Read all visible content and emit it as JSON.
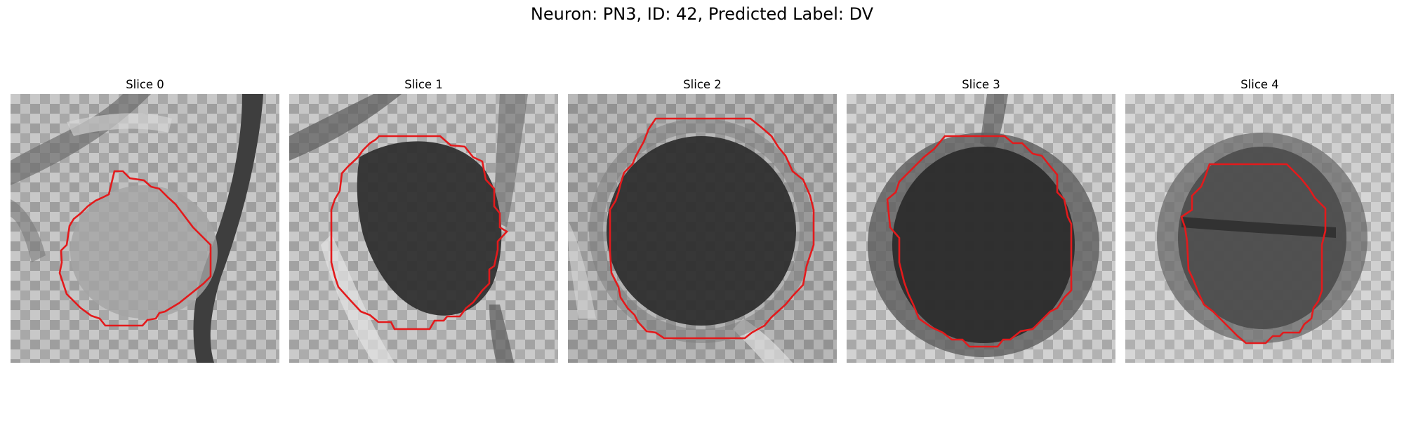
{
  "figure": {
    "title": "Neuron: PN3, ID: 42, Predicted Label: DV",
    "contour_color": "#e31a1c"
  },
  "slices": [
    {
      "label": "Slice 0",
      "background": "light",
      "soma_intensity": 0.45,
      "contour_icon": "octagon-contour-icon"
    },
    {
      "label": "Slice 1",
      "background": "light",
      "soma_intensity": 0.18,
      "contour_icon": "octagon-contour-icon"
    },
    {
      "label": "Slice 2",
      "background": "medium",
      "soma_intensity": 0.15,
      "contour_icon": "octagon-contour-icon"
    },
    {
      "label": "Slice 3",
      "background": "light",
      "soma_intensity": 0.18,
      "contour_icon": "octagon-contour-icon"
    },
    {
      "label": "Slice 4",
      "background": "light",
      "soma_intensity": 0.3,
      "contour_icon": "octagon-contour-icon"
    }
  ]
}
